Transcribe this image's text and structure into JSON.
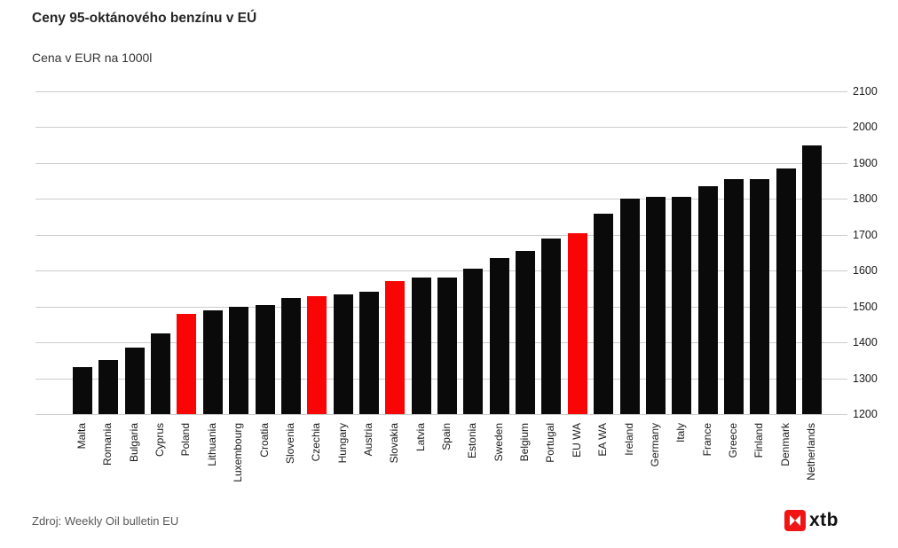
{
  "header": {
    "title": "Ceny 95-oktánového benzínu v EÚ",
    "subtitle": "Cena v EUR na 1000l"
  },
  "footer": {
    "source": "Zdroj: Weekly Oil bulletin EU",
    "logo_text": "xtb"
  },
  "chart_data": {
    "type": "bar",
    "title": "Ceny 95-oktánového benzínu v EÚ",
    "subtitle": "Cena v EUR na 1000l",
    "categories": [
      "Malta",
      "Romania",
      "Bulgaria",
      "Cyprus",
      "Poland",
      "Lithuania",
      "Luxembourg",
      "Croatia",
      "Slovenia",
      "Czechia",
      "Hungary",
      "Austria",
      "Slovakia",
      "Latvia",
      "Spain",
      "Estonia",
      "Sweden",
      "Belgium",
      "Portugal",
      "EU WA",
      "EA WA",
      "Ireland",
      "Germany",
      "Italy",
      "France",
      "Greece",
      "Finland",
      "Denmark",
      "Netherlands"
    ],
    "values": [
      1330,
      1350,
      1385,
      1425,
      1480,
      1490,
      1500,
      1505,
      1525,
      1530,
      1535,
      1540,
      1570,
      1580,
      1580,
      1605,
      1635,
      1655,
      1690,
      1705,
      1760,
      1800,
      1805,
      1805,
      1835,
      1855,
      1855,
      1885,
      1950
    ],
    "highlight_indices": [
      4,
      9,
      12,
      19
    ],
    "bar_color": "#0a0a0a",
    "highlight_color": "#fa0505",
    "gridline_color": "#cccccc",
    "ylim": [
      1200,
      2100
    ],
    "ytick_step": 100,
    "yticks": [
      1200,
      1300,
      1400,
      1500,
      1600,
      1700,
      1800,
      1900,
      2000,
      2100
    ],
    "yticks_position": "right",
    "grid": true,
    "xlabel": "",
    "ylabel": ""
  }
}
